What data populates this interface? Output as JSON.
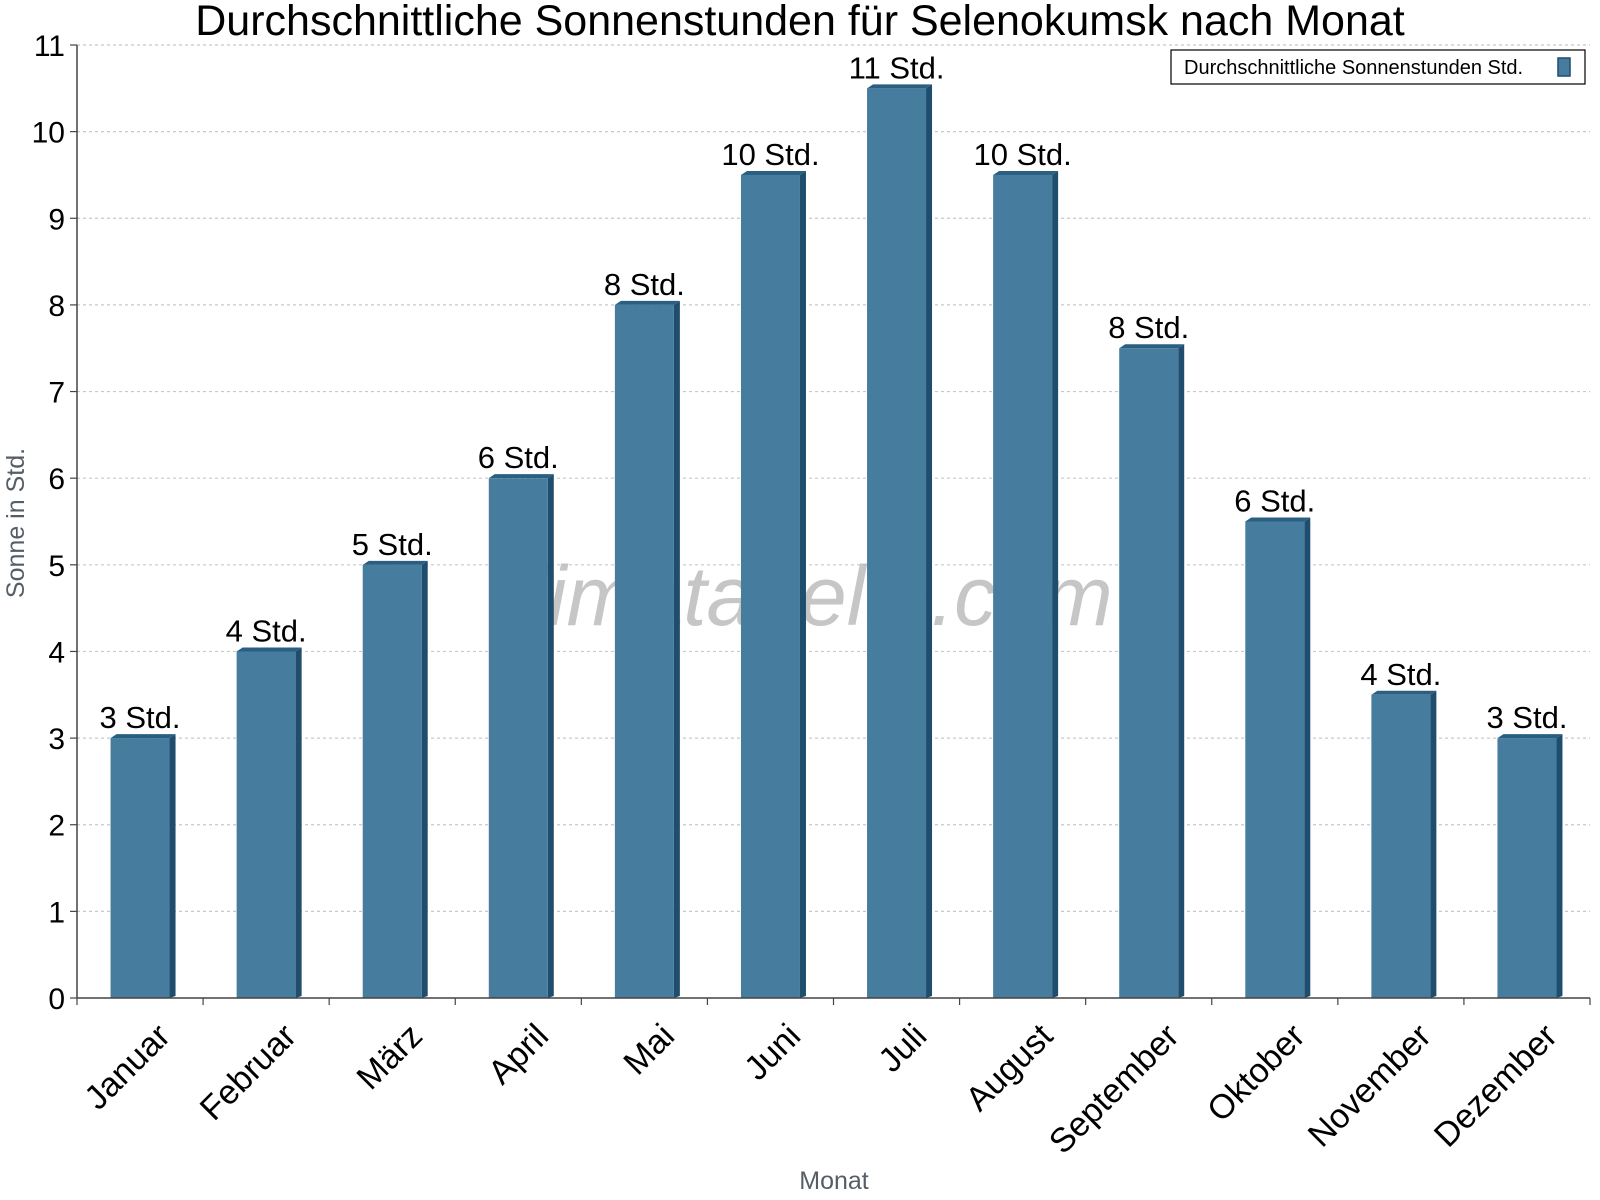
{
  "chart_data": {
    "type": "bar",
    "title": "Durchschnittliche Sonnenstunden für Selenokumsk nach Monat",
    "xlabel": "Monat",
    "ylabel": "Sonne in Std.",
    "categories": [
      "Januar",
      "Februar",
      "März",
      "April",
      "Mai",
      "Juni",
      "Juli",
      "August",
      "September",
      "Oktober",
      "November",
      "Dezember"
    ],
    "series": [
      {
        "name": "Durchschnittliche Sonnenstunden Std.",
        "values": [
          3,
          4,
          5,
          6,
          8,
          9.5,
          10.5,
          9.5,
          7.5,
          5.5,
          3.5,
          3
        ],
        "labels": [
          "3 Std.",
          "4 Std.",
          "5 Std.",
          "6 Std.",
          "8 Std.",
          "10 Std.",
          "11 Std.",
          "10 Std.",
          "8 Std.",
          "6 Std.",
          "4 Std.",
          "3 Std."
        ]
      }
    ],
    "ylim": [
      0,
      11
    ],
    "yticks": [
      0,
      1,
      2,
      3,
      4,
      5,
      6,
      7,
      8,
      9,
      10,
      11
    ],
    "grid": true,
    "legend_position": "top-right",
    "colors": {
      "bar_face": "#467c9e",
      "bar_side": "#1f4d6e",
      "bar_top": "#2b5f82",
      "grid": "#c8c8c8",
      "axis": "#444444"
    }
  },
  "watermark": "klimatabelle.com"
}
